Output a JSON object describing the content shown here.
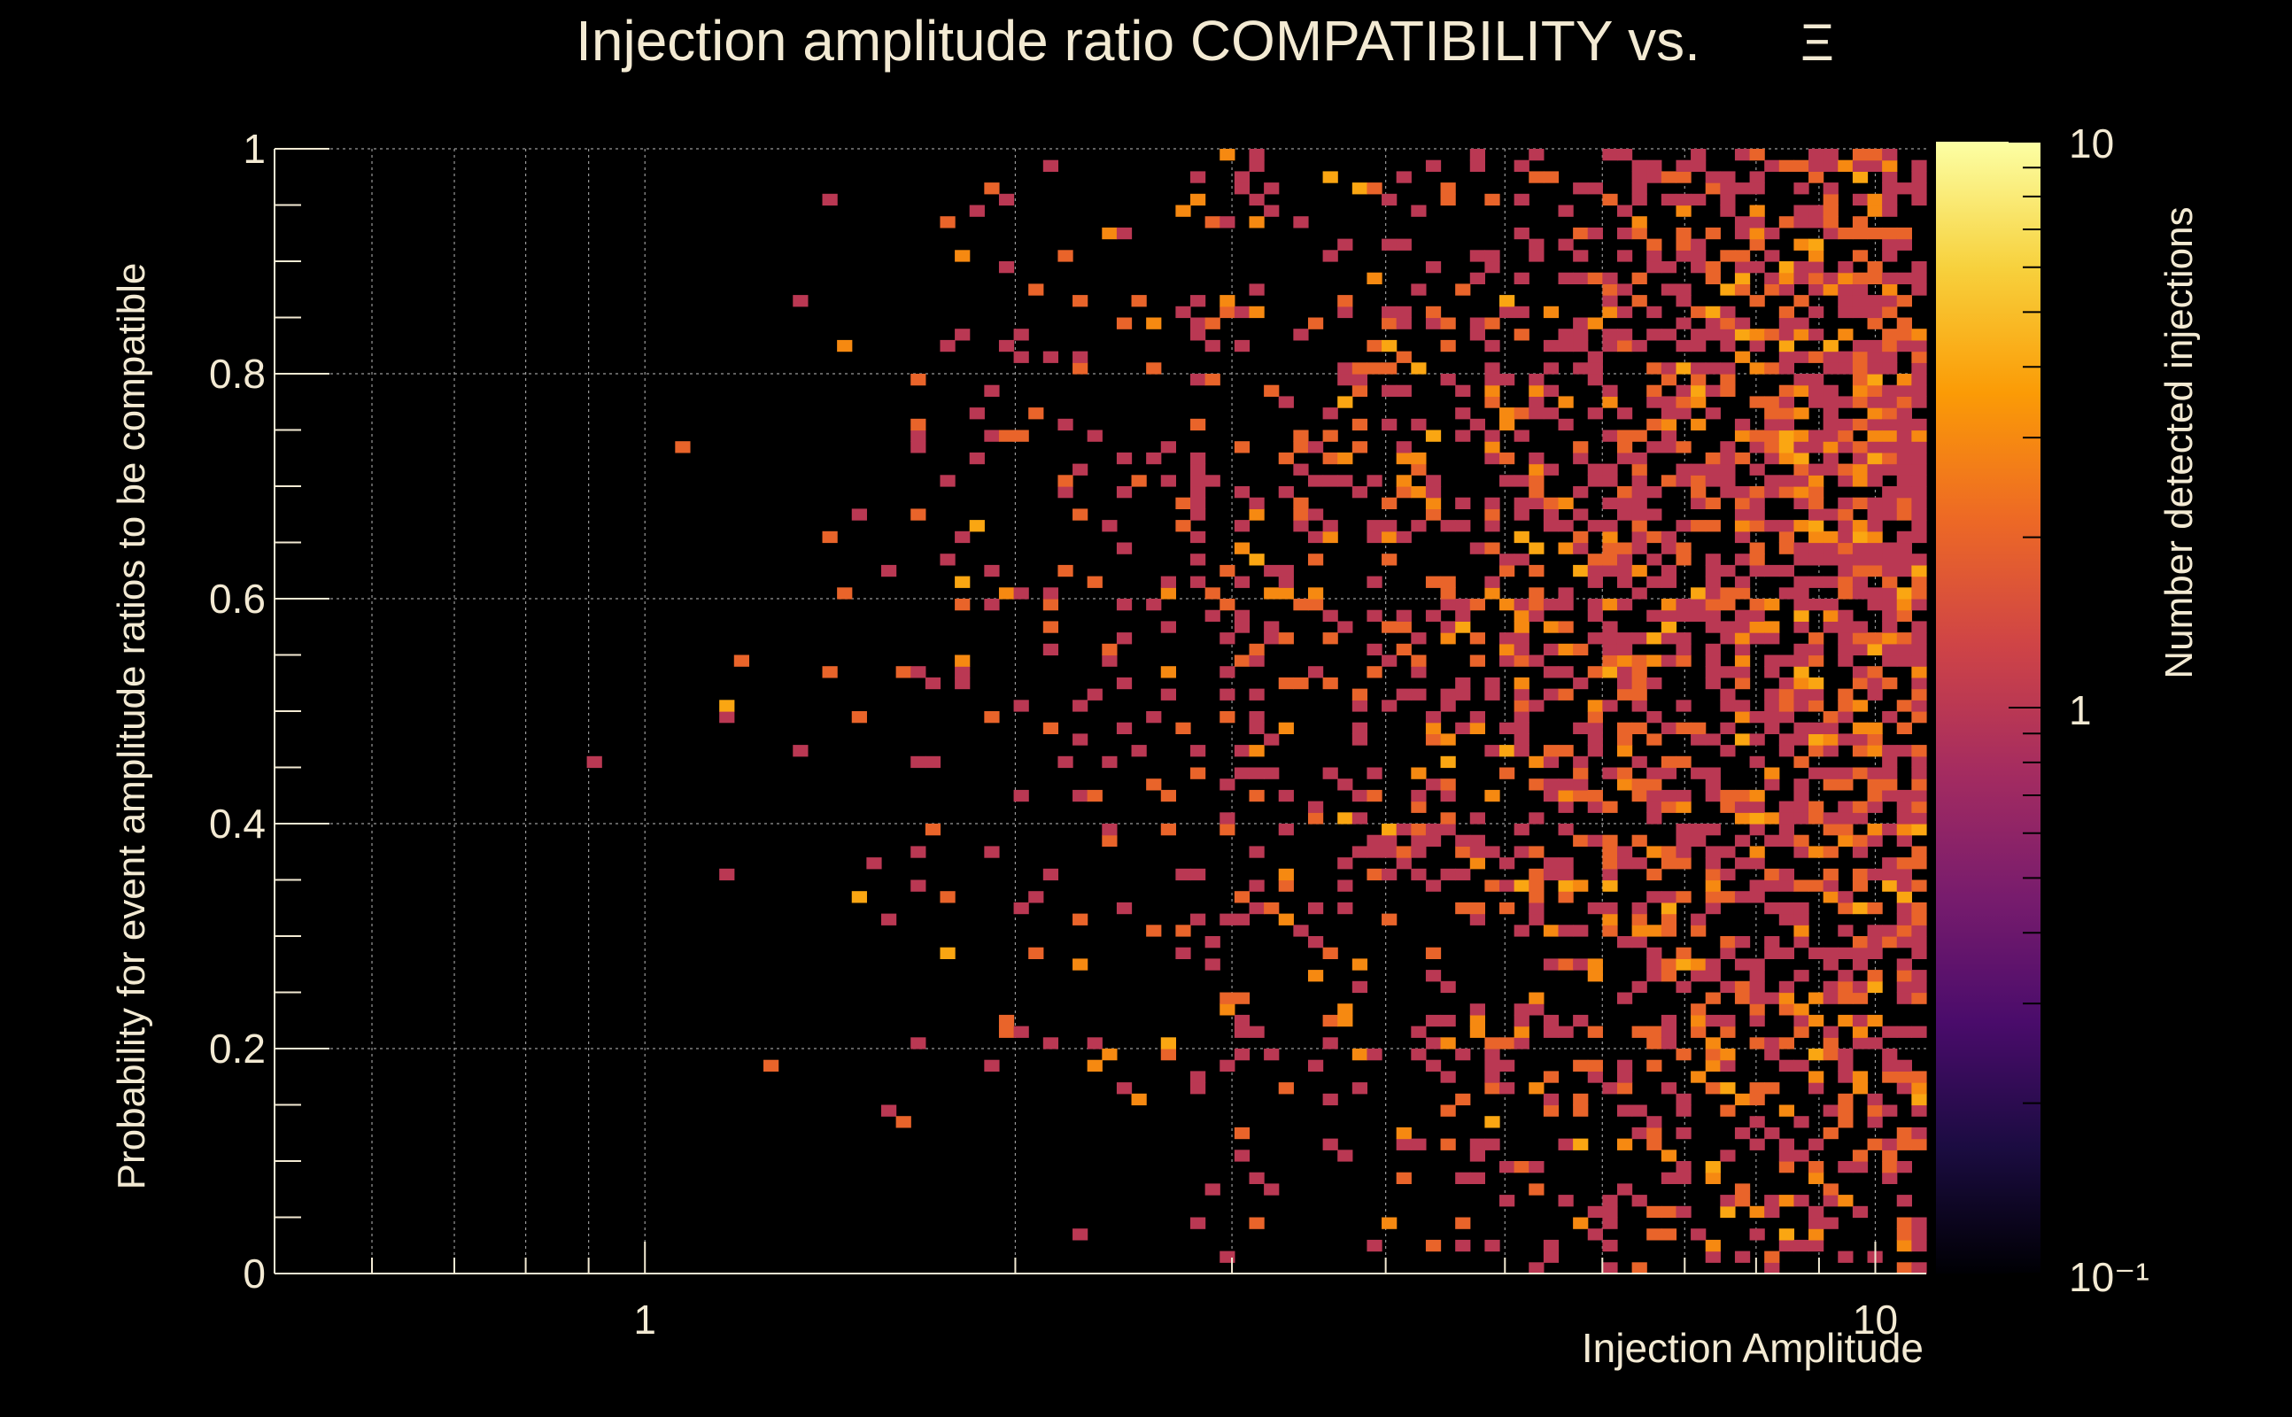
{
  "chart_data": {
    "type": "heatmap",
    "title": "Injection amplitude ratio COMPATIBILITY vs.",
    "title_symbol": "Ξ",
    "xlabel": "Injection Amplitude",
    "ylabel": "Probability for event amplitude ratios to be compatible",
    "zlabel": "Number detected injections",
    "xscale": "log",
    "xlim": [
      0.5,
      11
    ],
    "ylim": [
      0,
      1
    ],
    "zscale": "log",
    "zlim": [
      0.1,
      10
    ],
    "grid": true,
    "x_tick_labels": [
      "1",
      "10"
    ],
    "y_tick_labels": [
      "0",
      "0.2",
      "0.4",
      "0.6",
      "0.8",
      "1"
    ],
    "z_tick_labels": [
      "10",
      "1",
      "10⁻¹"
    ],
    "colormap": [
      "#000004",
      "#1b0c41",
      "#4a0c6b",
      "#781c6d",
      "#a52c60",
      "#cf4446",
      "#ed6925",
      "#fb9b06",
      "#f7d13d",
      "#fcffa4"
    ],
    "background": "#000000",
    "text_color": "#f3ead3",
    "bins": {
      "x_bins": 100,
      "y_bins": 100,
      "note_distribution": "sparse at low amplitude, dense 2-10; counts 1-4"
    }
  }
}
